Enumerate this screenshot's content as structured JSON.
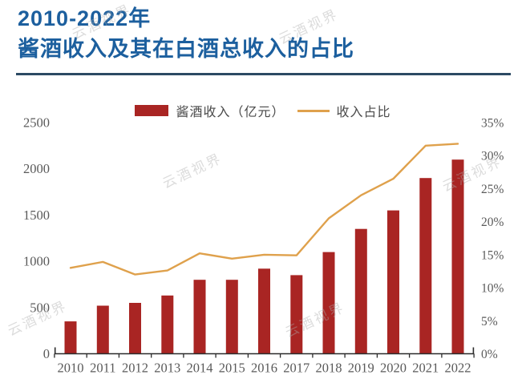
{
  "header": {
    "title_line1": "2010-2022年",
    "title_line2": "酱酒收入及其在白酒总收入的占比"
  },
  "watermark": {
    "text": "云酒视界"
  },
  "legend": {
    "bar_label": "酱酒收入（亿元）",
    "line_label": "收入占比"
  },
  "colors": {
    "title": "#1C5F9E",
    "divider": "#2C4A63",
    "bar": "#A92523",
    "line": "#DFA14C",
    "axis_text": "#5A5A5A",
    "axis_line": "#2B2B2B",
    "watermark": "#ADADAD",
    "background": "#FFFFFF"
  },
  "chart_data": {
    "type": "bar",
    "subtype": "bar+line combo with dual y-axes",
    "categories": [
      "2010",
      "2011",
      "2012",
      "2013",
      "2014",
      "2015",
      "2016",
      "2017",
      "2018",
      "2019",
      "2020",
      "2021",
      "2022"
    ],
    "series": [
      {
        "name": "酱酒收入（亿元）",
        "type": "bar",
        "axis": "left",
        "values": [
          350,
          520,
          550,
          630,
          800,
          800,
          920,
          850,
          1100,
          1350,
          1550,
          1900,
          2100
        ]
      },
      {
        "name": "收入占比",
        "type": "line",
        "axis": "right",
        "unit": "%",
        "values": [
          13.0,
          13.9,
          12.0,
          12.6,
          15.2,
          14.4,
          15.0,
          14.9,
          20.5,
          24.0,
          26.5,
          31.5,
          31.8
        ]
      }
    ],
    "left_axis": {
      "min": 0,
      "max": 2500,
      "step": 500,
      "tick_labels": [
        "0",
        "500",
        "1000",
        "1500",
        "2000",
        "2500"
      ]
    },
    "right_axis": {
      "min": 0,
      "max": 35,
      "step": 5,
      "tick_labels": [
        "0%",
        "5%",
        "10%",
        "15%",
        "20%",
        "25%",
        "30%",
        "35%"
      ]
    },
    "legend_position": "top-center",
    "grid": false
  }
}
